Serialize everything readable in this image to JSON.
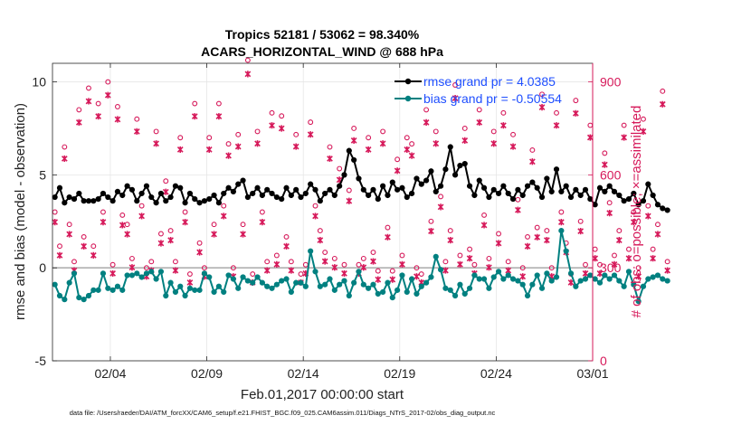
{
  "colors": {
    "rmse": "#000000",
    "bias": "#008080",
    "counts": "#d6195a",
    "zero_line": "#b0b0b0",
    "legend_text": "#1f4fff",
    "right_axis": "#d6195a"
  },
  "chart_data": {
    "type": "line",
    "title_line1": "Tropics 52181 / 53062 = 98.340%",
    "title_line2": "ACARS_HORIZONTAL_WIND @ 688 hPa",
    "xlabel": "Feb.01,2017 00:00:00 start",
    "ylabel_left": "rmse and bias (model - observation)",
    "ylabel_right": "# of obs: o=possible; ×=assimilated",
    "footnote": "data file: /Users/raeder/DAI/ATM_forcXX/CAM6_setup/f.e21.FHIST_BGC.f09_025.CAM6assim.011/Diags_NTrS_2017-02/obs_diag_output.nc",
    "xlim": [
      0,
      28
    ],
    "ylim_left": [
      -5,
      11
    ],
    "ylim_right": [
      0,
      960
    ],
    "x_ticks": [
      {
        "value": 3,
        "label": "02/04"
      },
      {
        "value": 8,
        "label": "02/09"
      },
      {
        "value": 13,
        "label": "02/14"
      },
      {
        "value": 18,
        "label": "02/19"
      },
      {
        "value": 23,
        "label": "02/24"
      },
      {
        "value": 28,
        "label": "03/01"
      }
    ],
    "y_ticks_left": [
      {
        "value": -5,
        "label": "-5"
      },
      {
        "value": 0,
        "label": "0"
      },
      {
        "value": 5,
        "label": "5"
      },
      {
        "value": 10,
        "label": "10"
      }
    ],
    "y_ticks_right": [
      {
        "value": 0,
        "label": "0"
      },
      {
        "value": 300,
        "label": "300"
      },
      {
        "value": 600,
        "label": "600"
      },
      {
        "value": 900,
        "label": "900"
      }
    ],
    "grid": true,
    "legend_position": "top-right",
    "x_step_days": 0.25,
    "series": [
      {
        "name": "rmse",
        "legend_label": "rmse grand pr = 4.0385",
        "values": [
          3.8,
          4.3,
          3.5,
          3.8,
          3.7,
          4.0,
          3.6,
          3.6,
          3.6,
          3.7,
          4.0,
          3.8,
          3.6,
          4.1,
          3.9,
          4.4,
          4.2,
          3.6,
          4.0,
          4.4,
          3.8,
          3.5,
          4.0,
          3.6,
          3.8,
          4.4,
          4.3,
          3.5,
          4.0,
          3.7,
          3.5,
          3.6,
          3.7,
          3.9,
          3.5,
          4.0,
          4.3,
          4.1,
          4.5,
          4.7,
          3.8,
          4.0,
          4.3,
          3.9,
          4.2,
          4.0,
          3.8,
          3.7,
          4.3,
          3.9,
          4.2,
          3.8,
          4.0,
          4.5,
          4.2,
          3.6,
          4.0,
          4.2,
          3.9,
          4.4,
          5.0,
          6.3,
          5.8,
          4.8,
          4.2,
          3.9,
          4.2,
          3.7,
          4.4,
          3.9,
          4.6,
          4.2,
          4.3,
          3.8,
          4.0,
          4.8,
          4.5,
          4.7,
          5.2,
          4.1,
          4.4,
          5.3,
          6.5,
          5.0,
          5.5,
          5.6,
          4.4,
          3.9,
          4.7,
          4.3,
          3.8,
          4.2,
          4.0,
          4.4,
          4.0,
          3.7,
          4.2,
          3.9,
          4.4,
          4.6,
          4.3,
          3.8,
          4.8,
          4.1,
          5.3,
          4.1,
          4.4,
          3.8,
          4.2,
          3.9,
          4.2,
          3.7,
          3.4,
          4.3,
          4.1,
          4.4,
          4.1,
          3.9,
          3.6,
          3.7,
          4.0,
          3.4,
          3.6,
          4.5,
          3.9,
          3.4,
          3.2,
          3.1
        ]
      },
      {
        "name": "bias",
        "legend_label": "bias grand pr = -0.50554",
        "values": [
          -0.9,
          -1.5,
          -1.7,
          -0.8,
          -0.3,
          -1.6,
          -1.7,
          -1.5,
          -1.2,
          -1.2,
          -0.3,
          -1.1,
          -1.2,
          -1.0,
          -1.2,
          -0.4,
          -0.4,
          -0.3,
          -0.5,
          -0.3,
          -0.2,
          -0.6,
          -0.2,
          -1.5,
          -0.8,
          -1.3,
          -1.0,
          -1.5,
          -1.1,
          -1.2,
          -1.2,
          -0.3,
          -0.5,
          -1.3,
          -1.0,
          -1.3,
          -0.4,
          -0.6,
          -1.1,
          -0.5,
          -0.7,
          -0.8,
          -0.5,
          -0.8,
          -1.0,
          -1.1,
          -0.9,
          -0.7,
          -0.6,
          -1.3,
          -0.8,
          -0.8,
          -1.0,
          0.9,
          -0.2,
          -1.0,
          -0.9,
          -0.6,
          -1.2,
          -0.9,
          -0.7,
          -1.5,
          -0.8,
          -0.2,
          -0.9,
          -1.1,
          -0.9,
          -1.4,
          -1.3,
          -0.8,
          -1.6,
          -1.2,
          -0.4,
          -1.3,
          -0.6,
          -1.4,
          -1.0,
          -0.8,
          -0.5,
          0.6,
          -0.1,
          -1.1,
          -1.2,
          -1.5,
          -0.9,
          -1.4,
          -1.1,
          -0.4,
          -0.6,
          -0.6,
          -1.1,
          -0.5,
          -0.2,
          -0.6,
          -0.4,
          -0.6,
          -0.7,
          -0.9,
          -1.5,
          -0.9,
          -0.4,
          -1.1,
          -0.3,
          -0.7,
          -0.5,
          2.0,
          0.9,
          -0.3,
          -1.0,
          -0.7,
          -0.6,
          -0.4,
          -0.6,
          -0.8,
          -0.4,
          -0.6,
          -0.4,
          -0.7,
          -1.0,
          -0.2,
          -0.9,
          -1.8,
          -1.0,
          -0.6,
          -0.5,
          -0.4,
          -0.6,
          -0.7
        ]
      }
    ],
    "obs_counts": {
      "possible": [
        480,
        370,
        690,
        440,
        320,
        810,
        400,
        880,
        370,
        830,
        480,
        900,
        310,
        820,
        470,
        440,
        330,
        780,
        500,
        300,
        320,
        740,
        410,
        580,
        420,
        320,
        720,
        480,
        280,
        830,
        380,
        300,
        720,
        440,
        830,
        500,
        700,
        300,
        730,
        440,
        970,
        280,
        740,
        480,
        320,
        800,
        340,
        790,
        400,
        320,
        730,
        280,
        310,
        770,
        500,
        420,
        350,
        690,
        330,
        620,
        310,
        550,
        750,
        310,
        330,
        720,
        350,
        290,
        740,
        430,
        290,
        650,
        340,
        720,
        700,
        300,
        280,
        810,
        450,
        740,
        530,
        320,
        420,
        890,
        340,
        750,
        360,
        310,
        810,
        470,
        330,
        740,
        410,
        800,
        320,
        730,
        520,
        300,
        400,
        680,
        430,
        860,
        420,
        300,
        800,
        480,
        380,
        280,
        840,
        450,
        310,
        760,
        360,
        310,
        670,
        510,
        340,
        420,
        760,
        360,
        480,
        300,
        780,
        500,
        360,
        440,
        870,
        320
      ]
    }
  }
}
